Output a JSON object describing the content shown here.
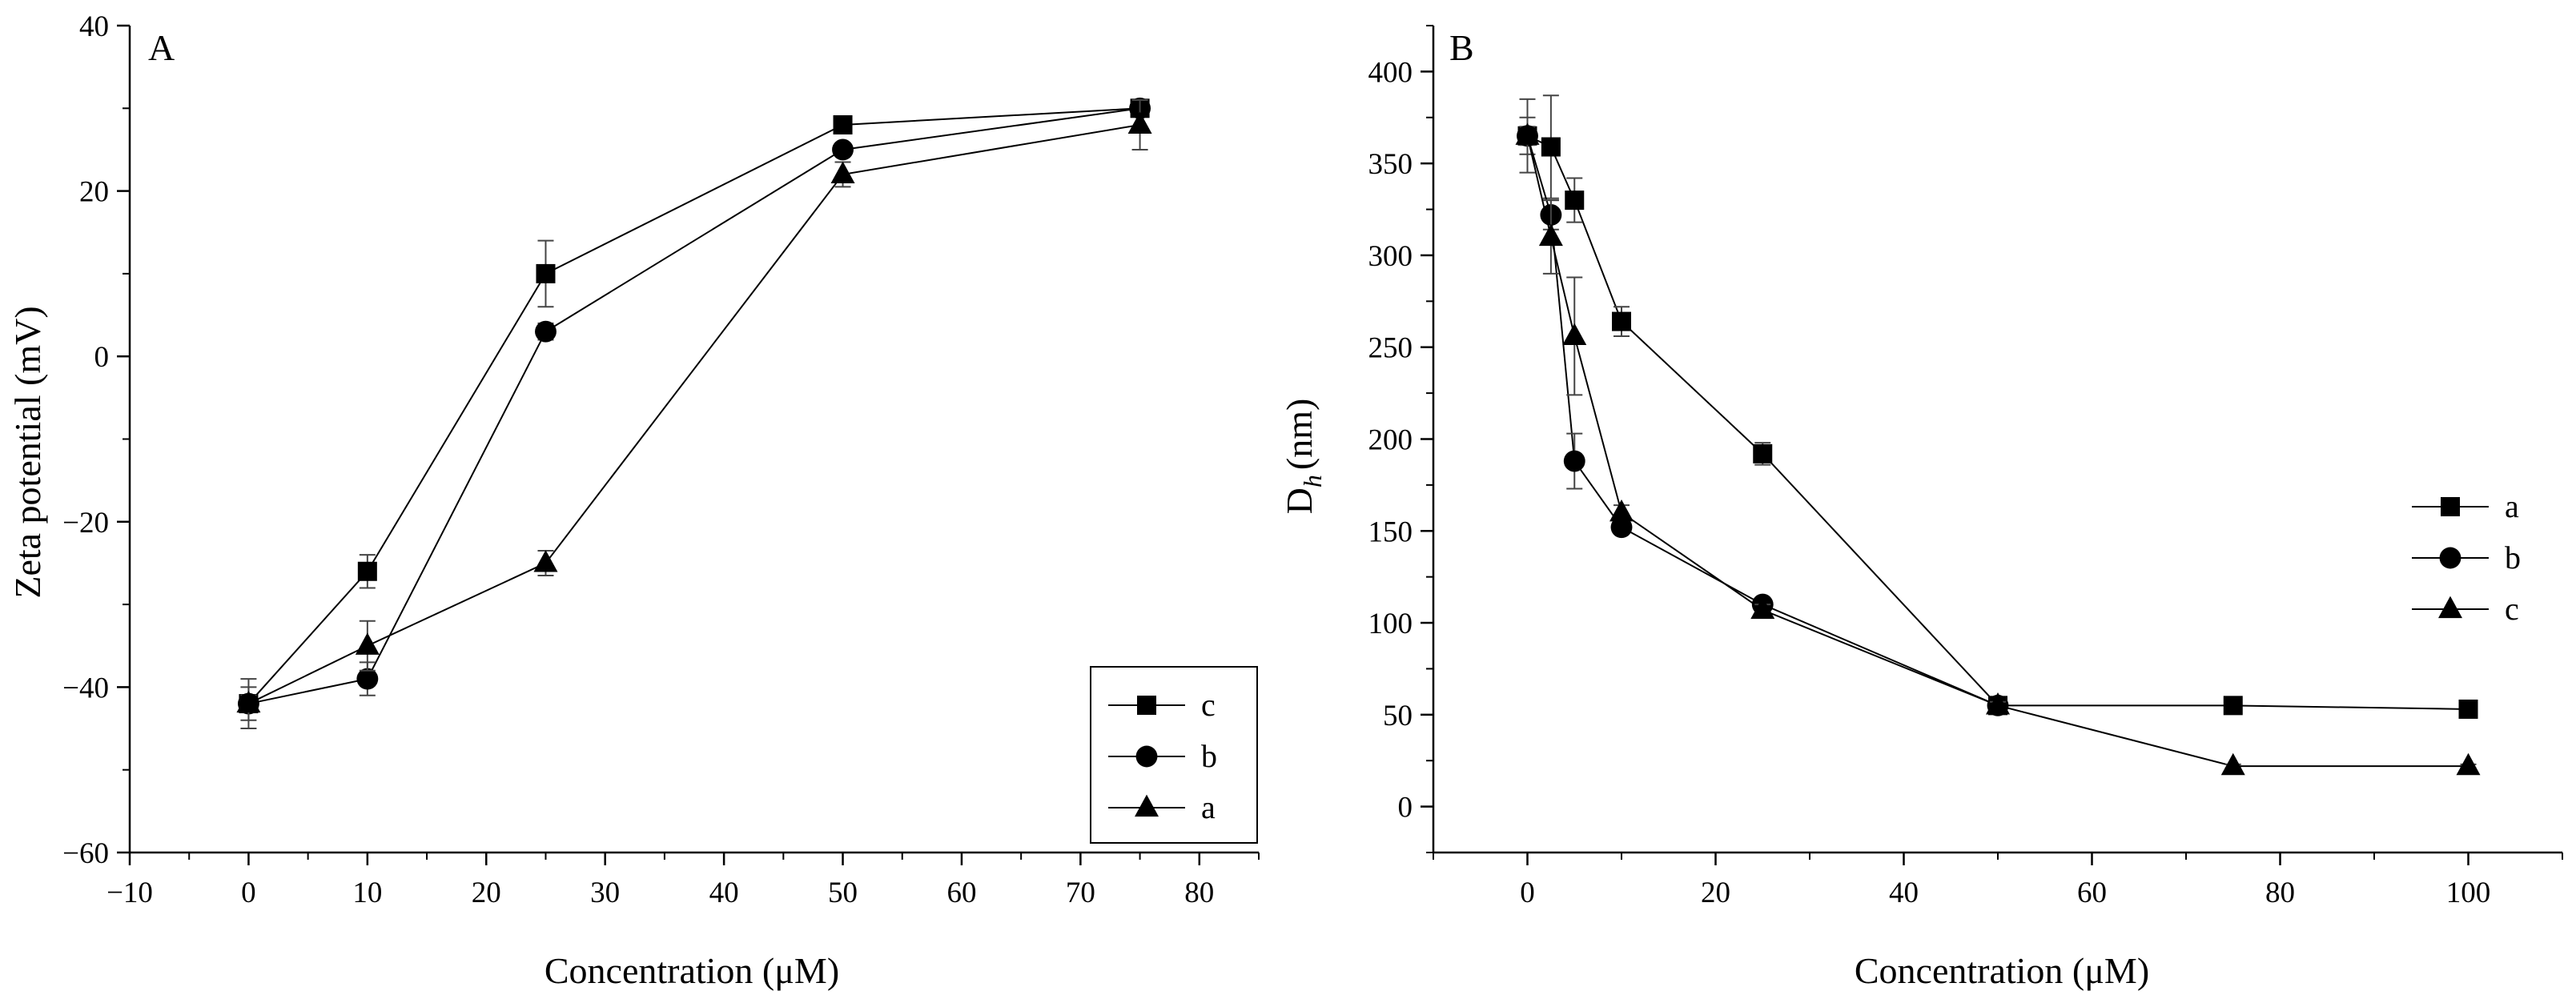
{
  "chart_data": [
    {
      "type": "line",
      "panel_label": "A",
      "xlabel": "Concentration (μM)",
      "ylabel": "Zeta potential (mV)",
      "xlim": [
        -10,
        85
      ],
      "ylim": [
        -60,
        40
      ],
      "xticks": [
        -10,
        0,
        10,
        20,
        30,
        40,
        50,
        60,
        70,
        80
      ],
      "yticks": [
        -60,
        -40,
        -20,
        0,
        20,
        40
      ],
      "xtick_labels": [
        "−10",
        "0",
        "10",
        "20",
        "30",
        "40",
        "50",
        "60",
        "70",
        "80"
      ],
      "ytick_labels": [
        "−60",
        "−40",
        "−20",
        "0",
        "20",
        "40"
      ],
      "legend_position": "bottom-right",
      "legend_order": [
        "c",
        "b",
        "a"
      ],
      "series": [
        {
          "name": "c",
          "marker": "square",
          "x": [
            0,
            10,
            25,
            50,
            75
          ],
          "y": [
            -42,
            -26,
            10,
            28,
            30
          ],
          "err": [
            2,
            2,
            4,
            0.5,
            1
          ]
        },
        {
          "name": "b",
          "marker": "circle",
          "x": [
            0,
            10,
            25,
            50,
            75
          ],
          "y": [
            -42,
            -39,
            3,
            25,
            30
          ],
          "err": [
            1,
            2,
            1,
            0.5,
            0.5
          ]
        },
        {
          "name": "a",
          "marker": "triangle",
          "x": [
            0,
            10,
            25,
            50,
            75
          ],
          "y": [
            -42,
            -35,
            -25,
            22,
            28
          ],
          "err": [
            3,
            3,
            1.5,
            1.5,
            3
          ]
        }
      ]
    },
    {
      "type": "line",
      "panel_label": "B",
      "xlabel": "Concentration (μM)",
      "ylabel_main": "D",
      "ylabel_sub": "h",
      "ylabel_rest": "(nm)",
      "xlim": [
        -10,
        110
      ],
      "ylim": [
        -25,
        425
      ],
      "xticks": [
        0,
        20,
        40,
        60,
        80,
        100
      ],
      "yticks": [
        0,
        50,
        100,
        150,
        200,
        250,
        300,
        350,
        400
      ],
      "xtick_labels": [
        "0",
        "20",
        "40",
        "60",
        "80",
        "100"
      ],
      "ytick_labels": [
        "0",
        "50",
        "100",
        "150",
        "200",
        "250",
        "300",
        "350",
        "400"
      ],
      "legend_position": "right",
      "legend_order": [
        "a",
        "b",
        "c"
      ],
      "series": [
        {
          "name": "a",
          "marker": "square",
          "x": [
            0,
            2.5,
            5,
            10,
            25,
            50,
            75,
            100
          ],
          "y": [
            365,
            359,
            330,
            264,
            192,
            55,
            55,
            53
          ],
          "err": [
            10,
            28,
            12,
            8,
            6,
            2,
            2,
            2
          ]
        },
        {
          "name": "b",
          "marker": "circle",
          "x": [
            0,
            2.5,
            5,
            10,
            25,
            50
          ],
          "y": [
            365,
            322,
            188,
            152,
            110,
            55
          ],
          "err": [
            5,
            8,
            15,
            3,
            3,
            2
          ]
        },
        {
          "name": "c",
          "marker": "triangle",
          "x": [
            0,
            2.5,
            5,
            10,
            25,
            50,
            75,
            100
          ],
          "y": [
            365,
            310,
            256,
            160,
            107,
            55,
            22,
            22
          ],
          "err": [
            20,
            20,
            32,
            4,
            3,
            2,
            1,
            1
          ]
        }
      ]
    }
  ]
}
